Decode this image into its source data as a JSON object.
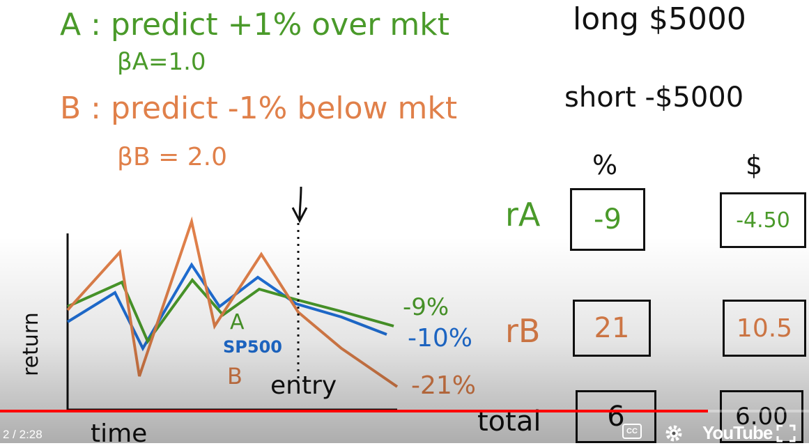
{
  "notes": {
    "line_a": "A : predict +1% over mkt",
    "beta_a": "βA=1.0",
    "line_b": "B : predict -1% below mkt",
    "beta_b": "βB = 2.0",
    "long": "long  $5000",
    "short": "short -$5000",
    "col_pct": "%",
    "col_dollar": "$",
    "row_ra": "rA",
    "row_rb": "rB",
    "row_total": "total"
  },
  "table": {
    "ra_pct": "-9",
    "ra_dollar": "-4.50",
    "rb_pct": "21",
    "rb_dollar": "10.5",
    "total_pct": "6",
    "total_dollar": "6.00"
  },
  "chart": {
    "ylabel": "return",
    "xlabel": "time",
    "label_a": "A",
    "label_sp": "SP500",
    "label_b": "B",
    "entry": "entry",
    "end_a": "-9%",
    "end_sp": "-10%",
    "end_b": "-21%"
  },
  "player": {
    "time": "2 / 2:28",
    "cc": "CC",
    "brand": "YouTube",
    "progress_fraction": 0.875
  },
  "colors": {
    "green": "#4a9a2a",
    "orange": "#e0804a",
    "blue": "#1f6fd6",
    "progress": "#ff0000"
  }
}
